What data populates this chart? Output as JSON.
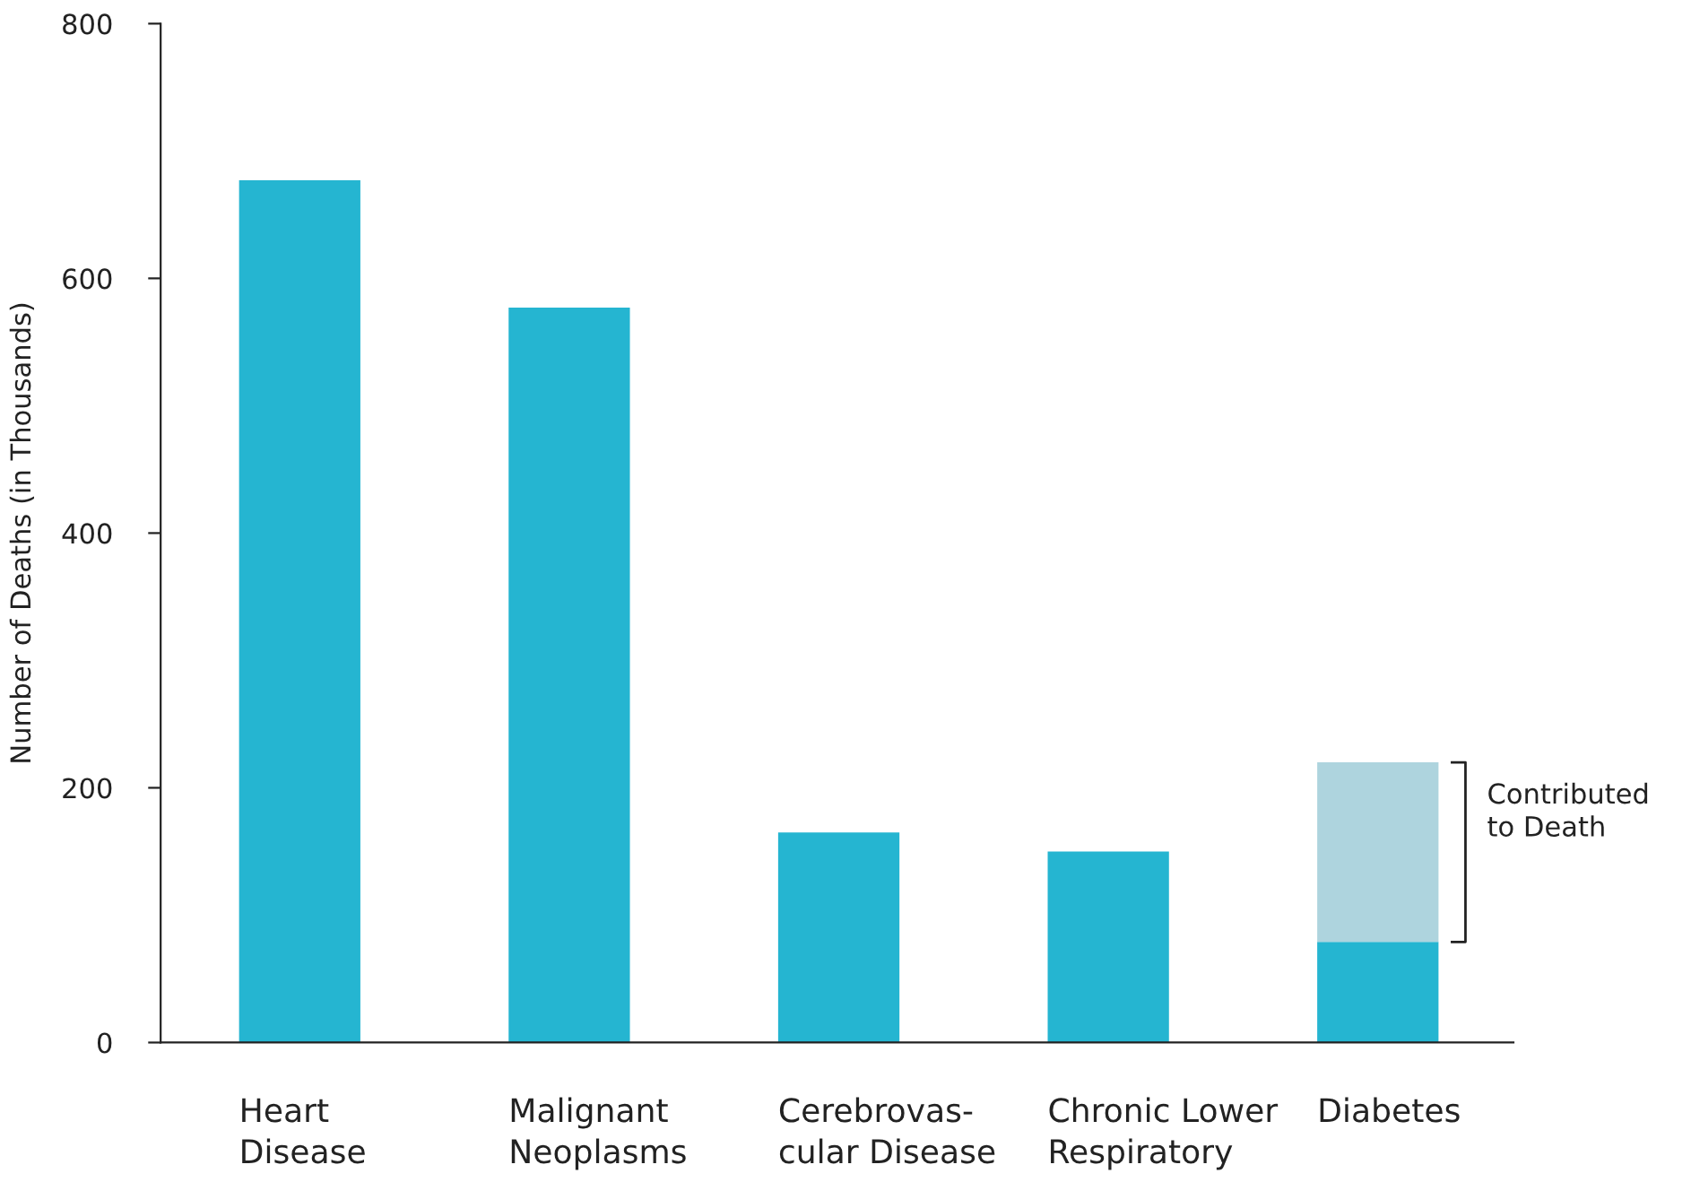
{
  "chart_data": {
    "type": "bar",
    "stacked": true,
    "ylabel": "Number of Deaths (in Thousands)",
    "categories": [
      "Heart\nDisease",
      "Malignant\nNeoplasms",
      "Cerebrovas-\ncular Disease",
      "Chronic Lower\nRespiratory",
      "Diabetes"
    ],
    "series": [
      {
        "color": "#25b5d1",
        "values": [
          677,
          577,
          165,
          150,
          79
        ]
      },
      {
        "color": "#aed4de",
        "values": [
          null,
          null,
          null,
          null,
          141
        ]
      }
    ],
    "ylim": [
      0,
      800
    ],
    "yticks": [
      0,
      200,
      400,
      600,
      800
    ],
    "annotations": [
      "Contributed\nto Death"
    ],
    "grid": false
  }
}
